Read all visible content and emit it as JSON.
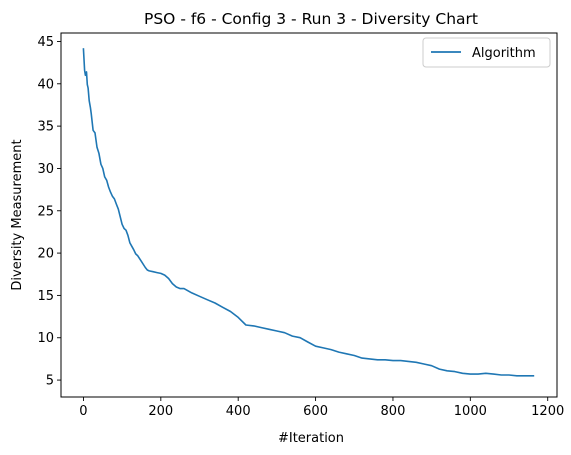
{
  "chart_data": {
    "type": "line",
    "title": "PSO - f6 - Config 3 - Run 3 - Diversity Chart",
    "xlabel": "#Iteration",
    "ylabel": "Diversity Measurement",
    "xlim": [
      -58,
      1224
    ],
    "ylim": [
      3.0,
      46.0
    ],
    "xticks": [
      0,
      200,
      400,
      600,
      800,
      1000,
      1200
    ],
    "yticks": [
      5,
      10,
      15,
      20,
      25,
      30,
      35,
      40,
      45
    ],
    "grid": false,
    "legend_position": "top-right",
    "colors": {
      "series": "#1f77b4",
      "axes": "#000000",
      "legend_border": "#cccccc"
    },
    "series": [
      {
        "name": "Algorithm",
        "x": [
          0,
          3,
          5,
          8,
          10,
          12,
          15,
          18,
          20,
          25,
          30,
          35,
          40,
          45,
          50,
          55,
          60,
          65,
          70,
          75,
          80,
          85,
          90,
          95,
          100,
          105,
          110,
          115,
          120,
          125,
          130,
          135,
          140,
          150,
          160,
          165,
          170,
          180,
          190,
          200,
          210,
          220,
          230,
          240,
          250,
          260,
          280,
          300,
          320,
          340,
          360,
          380,
          400,
          420,
          440,
          460,
          480,
          500,
          520,
          540,
          560,
          580,
          600,
          620,
          640,
          660,
          680,
          700,
          720,
          740,
          760,
          780,
          800,
          820,
          840,
          860,
          880,
          900,
          920,
          940,
          960,
          980,
          1000,
          1020,
          1040,
          1060,
          1080,
          1100,
          1120,
          1140,
          1160,
          1165
        ],
        "y": [
          44.2,
          41.6,
          41.0,
          41.4,
          39.9,
          39.5,
          38.0,
          37.2,
          36.5,
          34.5,
          34.2,
          32.5,
          31.8,
          30.5,
          30.0,
          29.0,
          28.6,
          27.8,
          27.2,
          26.7,
          26.4,
          25.8,
          25.2,
          24.3,
          23.4,
          22.9,
          22.7,
          22.1,
          21.2,
          20.8,
          20.4,
          19.9,
          19.7,
          19.0,
          18.3,
          18.0,
          17.9,
          17.8,
          17.7,
          17.6,
          17.4,
          17.0,
          16.4,
          16.0,
          15.8,
          15.8,
          15.3,
          14.9,
          14.5,
          14.1,
          13.6,
          13.1,
          12.4,
          11.5,
          11.4,
          11.2,
          11.0,
          10.8,
          10.6,
          10.2,
          10.0,
          9.5,
          9.0,
          8.8,
          8.6,
          8.3,
          8.1,
          7.9,
          7.6,
          7.5,
          7.4,
          7.4,
          7.3,
          7.3,
          7.2,
          7.1,
          6.9,
          6.7,
          6.3,
          6.1,
          6.0,
          5.8,
          5.7,
          5.7,
          5.8,
          5.7,
          5.6,
          5.6,
          5.5,
          5.5,
          5.5,
          5.5
        ]
      }
    ]
  }
}
